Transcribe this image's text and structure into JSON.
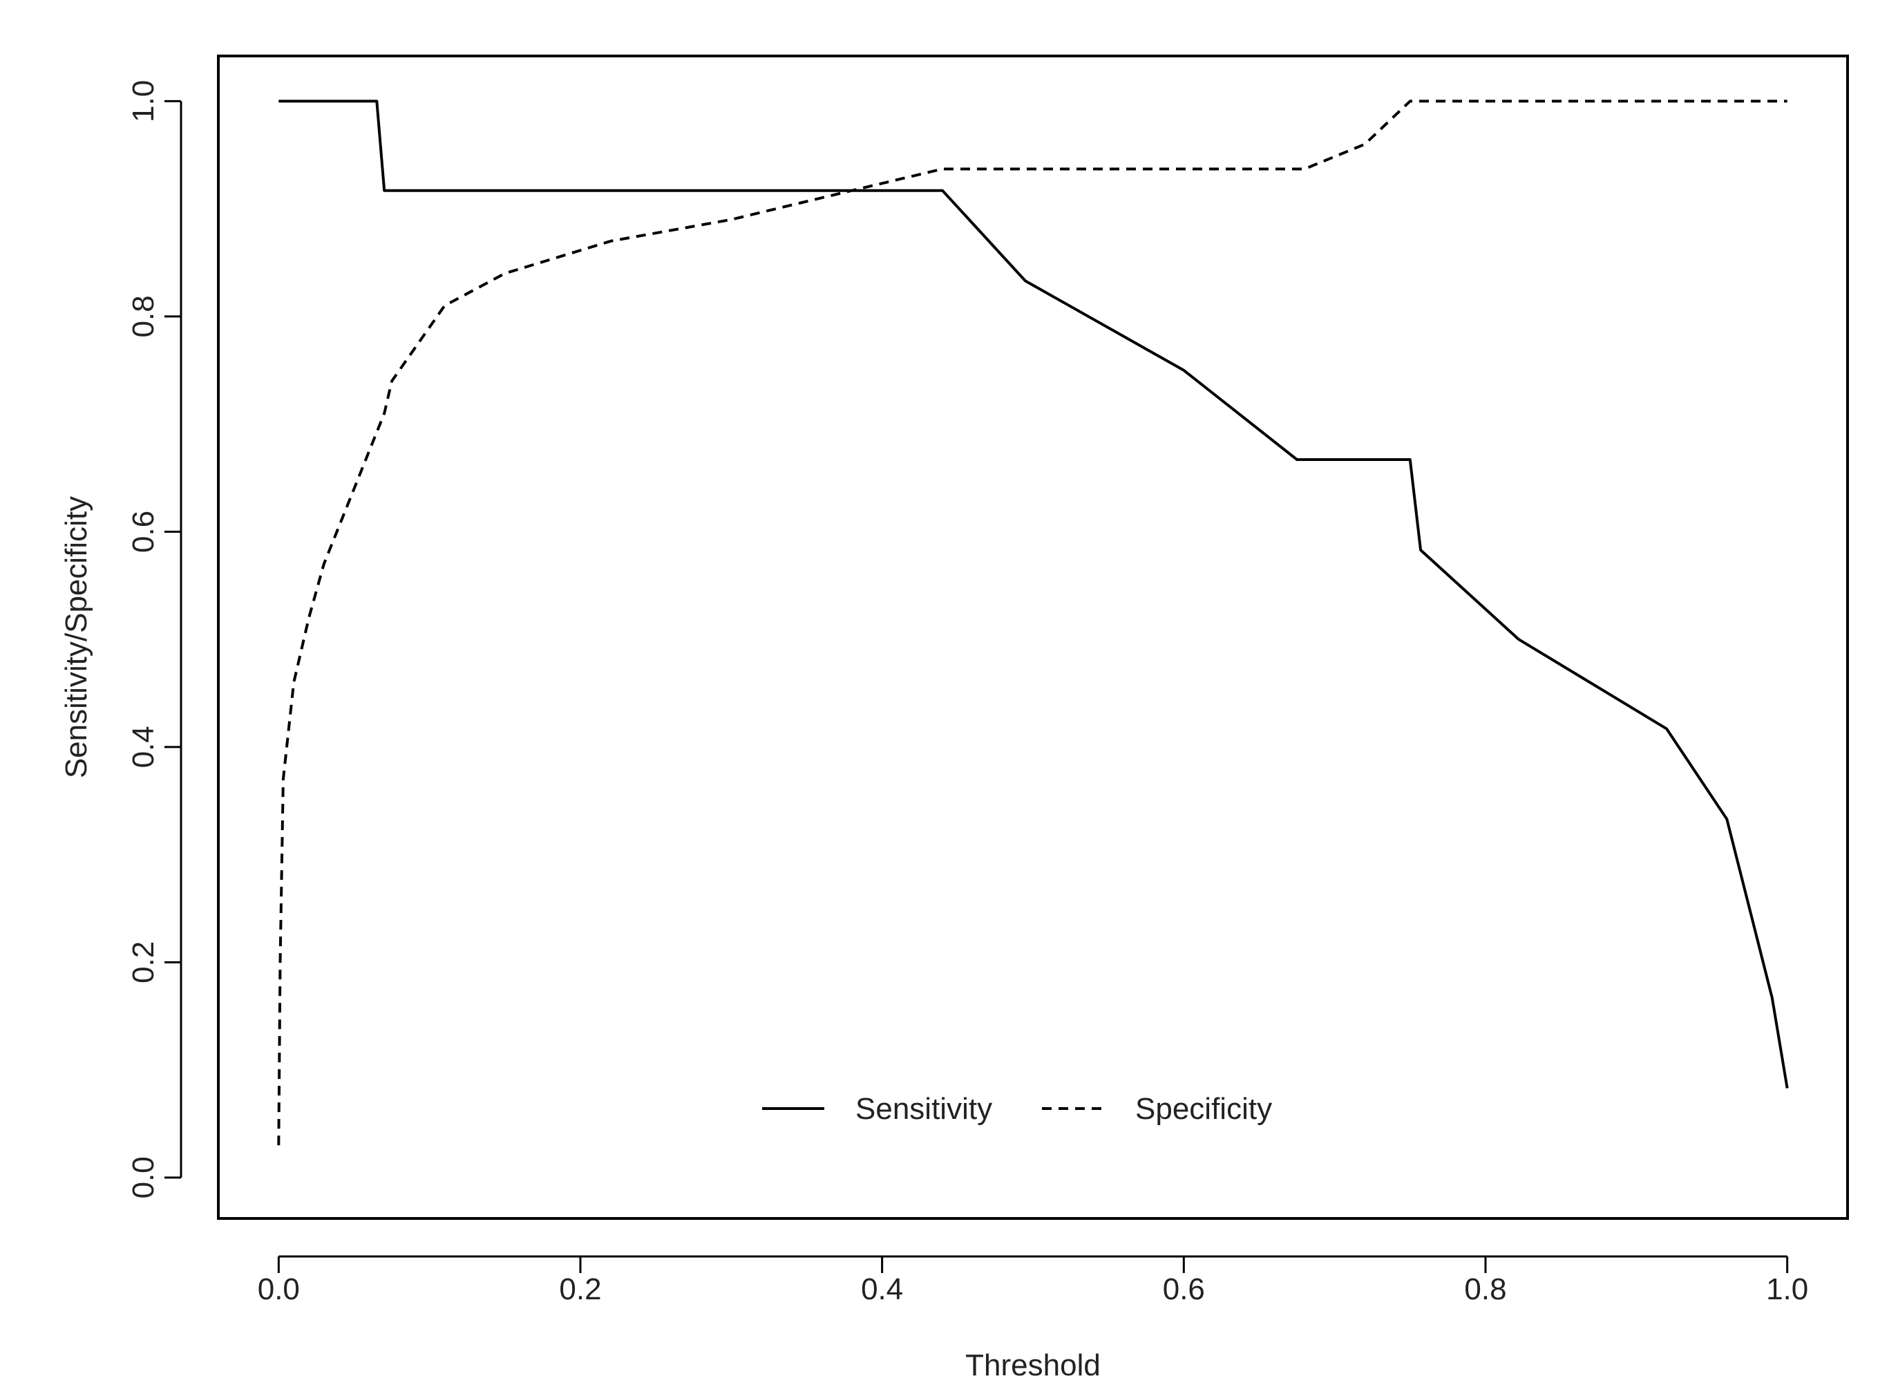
{
  "chart_data": {
    "type": "line",
    "title": "",
    "xlabel": "Threshold",
    "ylabel": "Sensitivity/Specificity",
    "xlim": [
      -0.04,
      1.04
    ],
    "ylim": [
      -0.038,
      1.042
    ],
    "xticks": [
      0.0,
      0.2,
      0.4,
      0.6,
      0.8,
      1.0
    ],
    "yticks": [
      0.0,
      0.2,
      0.4,
      0.6,
      0.8,
      1.0
    ],
    "xtick_labels": [
      "0.0",
      "0.2",
      "0.4",
      "0.6",
      "0.8",
      "1.0"
    ],
    "ytick_labels": [
      "0.0",
      "0.2",
      "0.4",
      "0.6",
      "0.8",
      "1.0"
    ],
    "grid": false,
    "legend": {
      "position": "bottom-center",
      "orientation": "horizontal"
    },
    "series": [
      {
        "name": "Sensitivity",
        "style": "solid",
        "color": "#000000",
        "points": [
          [
            0.0,
            1.0
          ],
          [
            0.065,
            1.0
          ],
          [
            0.07,
            0.917
          ],
          [
            0.44,
            0.917
          ],
          [
            0.495,
            0.833
          ],
          [
            0.6,
            0.75
          ],
          [
            0.675,
            0.667
          ],
          [
            0.75,
            0.667
          ],
          [
            0.757,
            0.583
          ],
          [
            0.822,
            0.5
          ],
          [
            0.92,
            0.417
          ],
          [
            0.96,
            0.333
          ],
          [
            0.99,
            0.167
          ],
          [
            1.0,
            0.083
          ]
        ]
      },
      {
        "name": "Specificity",
        "style": "dashed",
        "color": "#000000",
        "points": [
          [
            0.0,
            0.03
          ],
          [
            0.001,
            0.2
          ],
          [
            0.003,
            0.37
          ],
          [
            0.01,
            0.46
          ],
          [
            0.02,
            0.52
          ],
          [
            0.03,
            0.57
          ],
          [
            0.05,
            0.64
          ],
          [
            0.07,
            0.71
          ],
          [
            0.075,
            0.74
          ],
          [
            0.09,
            0.77
          ],
          [
            0.11,
            0.81
          ],
          [
            0.15,
            0.84
          ],
          [
            0.22,
            0.87
          ],
          [
            0.3,
            0.89
          ],
          [
            0.38,
            0.917
          ],
          [
            0.44,
            0.937
          ],
          [
            0.68,
            0.937
          ],
          [
            0.72,
            0.96
          ],
          [
            0.75,
            1.0
          ],
          [
            1.0,
            1.0
          ]
        ]
      }
    ]
  }
}
